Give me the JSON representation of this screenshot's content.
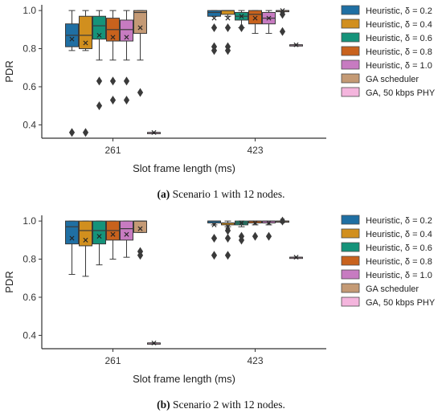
{
  "legend": [
    {
      "label": "Heuristic, δ = 0.2",
      "color": "#1f6fa3"
    },
    {
      "label": "Heuristic, δ = 0.4",
      "color": "#d18f1e"
    },
    {
      "label": "Heuristic, δ = 0.6",
      "color": "#15937a"
    },
    {
      "label": "Heuristic, δ = 0.8",
      "color": "#c8621d"
    },
    {
      "label": "Heuristic, δ = 1.0",
      "color": "#c77bc1"
    },
    {
      "label": "GA scheduler",
      "color": "#c49a75"
    },
    {
      "label": "GA, 50 kbps PHY",
      "color": "#f4b5dd"
    }
  ],
  "chart_data": [
    {
      "type": "box",
      "caption_label": "(a)",
      "caption_text": " Scenario 1 with 12 nodes.",
      "xlabel": "Slot frame length (ms)",
      "ylabel": "PDR",
      "categories": [
        "261",
        "423"
      ],
      "yticks": [
        0.4,
        0.6,
        0.8,
        1.0
      ],
      "ylim": [
        0.33,
        1.03
      ],
      "grid": false,
      "legend_position": "right",
      "series": [
        {
          "name": "Heuristic, δ = 0.2",
          "boxes": [
            {
              "whislo": 0.79,
              "q1": 0.81,
              "med": 0.87,
              "q3": 0.93,
              "whishi": 1.0,
              "mean": 0.85,
              "fliers": [
                0.36
              ]
            },
            {
              "whislo": 0.97,
              "q1": 0.97,
              "med": 0.99,
              "q3": 1.0,
              "whishi": 1.0,
              "mean": 0.96,
              "fliers": [
                0.91,
                0.81,
                0.79
              ]
            }
          ]
        },
        {
          "name": "Heuristic, δ = 0.4",
          "boxes": [
            {
              "whislo": 0.79,
              "q1": 0.8,
              "med": 0.87,
              "q3": 0.97,
              "whishi": 1.0,
              "mean": 0.83,
              "fliers": [
                0.36
              ]
            },
            {
              "whislo": 0.97,
              "q1": 0.98,
              "med": 1.0,
              "q3": 1.0,
              "whishi": 1.0,
              "mean": 0.96,
              "fliers": [
                0.91,
                0.81,
                0.79
              ]
            }
          ]
        },
        {
          "name": "Heuristic, δ = 0.6",
          "boxes": [
            {
              "whislo": 0.74,
              "q1": 0.85,
              "med": 0.92,
              "q3": 0.97,
              "whishi": 1.0,
              "mean": 0.87,
              "fliers": [
                0.63,
                0.5
              ]
            },
            {
              "whislo": 0.91,
              "q1": 0.95,
              "med": 0.97,
              "q3": 0.99,
              "whishi": 1.0,
              "mean": 0.97,
              "fliers": [
                0.91
              ]
            }
          ]
        },
        {
          "name": "Heuristic, δ = 0.8",
          "boxes": [
            {
              "whislo": 0.74,
              "q1": 0.84,
              "med": 0.9,
              "q3": 0.96,
              "whishi": 1.0,
              "mean": 0.86,
              "fliers": [
                0.63,
                0.53
              ]
            },
            {
              "whislo": 0.88,
              "q1": 0.93,
              "med": 0.98,
              "q3": 1.0,
              "whishi": 1.0,
              "mean": 0.96,
              "fliers": []
            }
          ]
        },
        {
          "name": "Heuristic, δ = 1.0",
          "boxes": [
            {
              "whislo": 0.74,
              "q1": 0.84,
              "med": 0.9,
              "q3": 0.95,
              "whishi": 1.0,
              "mean": 0.86,
              "fliers": [
                0.63,
                0.53
              ]
            },
            {
              "whislo": 0.88,
              "q1": 0.93,
              "med": 0.96,
              "q3": 0.99,
              "whishi": 1.0,
              "mean": 0.96,
              "fliers": []
            }
          ]
        },
        {
          "name": "GA scheduler",
          "boxes": [
            {
              "whislo": 0.74,
              "q1": 0.88,
              "med": 0.99,
              "q3": 1.0,
              "whishi": 1.0,
              "mean": 0.91,
              "fliers": [
                0.57
              ]
            },
            {
              "whislo": 1.0,
              "q1": 1.0,
              "med": 1.0,
              "q3": 1.0,
              "whishi": 1.0,
              "mean": 1.0,
              "fliers": [
                0.98,
                0.89
              ]
            }
          ]
        },
        {
          "name": "GA, 50 kbps PHY",
          "boxes": [
            {
              "whislo": 0.36,
              "q1": 0.36,
              "med": 0.36,
              "q3": 0.36,
              "whishi": 0.36,
              "mean": 0.36,
              "fliers": []
            },
            {
              "whislo": 0.82,
              "q1": 0.82,
              "med": 0.82,
              "q3": 0.82,
              "whishi": 0.82,
              "mean": 0.82,
              "fliers": []
            }
          ]
        }
      ]
    },
    {
      "type": "box",
      "caption_label": "(b)",
      "caption_text": " Scenario 2 with 12 nodes.",
      "xlabel": "Slot frame length (ms)",
      "ylabel": "PDR",
      "categories": [
        "261",
        "423"
      ],
      "yticks": [
        0.4,
        0.6,
        0.8,
        1.0
      ],
      "ylim": [
        0.33,
        1.03
      ],
      "grid": false,
      "legend_position": "right",
      "series": [
        {
          "name": "Heuristic, δ = 0.2",
          "boxes": [
            {
              "whislo": 0.72,
              "q1": 0.88,
              "med": 0.97,
              "q3": 1.0,
              "whishi": 1.0,
              "mean": 0.91,
              "fliers": []
            },
            {
              "whislo": 0.98,
              "q1": 0.99,
              "med": 1.0,
              "q3": 1.0,
              "whishi": 1.0,
              "mean": 0.98,
              "fliers": [
                0.91,
                0.82
              ]
            }
          ]
        },
        {
          "name": "Heuristic, δ = 0.4",
          "boxes": [
            {
              "whislo": 0.71,
              "q1": 0.87,
              "med": 0.95,
              "q3": 1.0,
              "whishi": 1.0,
              "mean": 0.9,
              "fliers": []
            },
            {
              "whislo": 0.97,
              "q1": 0.98,
              "med": 0.99,
              "q3": 0.99,
              "whishi": 1.0,
              "mean": 0.97,
              "fliers": [
                0.95,
                0.91,
                0.82
              ]
            }
          ]
        },
        {
          "name": "Heuristic, δ = 0.6",
          "boxes": [
            {
              "whislo": 0.77,
              "q1": 0.88,
              "med": 0.95,
              "q3": 1.0,
              "whishi": 1.0,
              "mean": 0.92,
              "fliers": []
            },
            {
              "whislo": 0.97,
              "q1": 0.98,
              "med": 0.99,
              "q3": 1.0,
              "whishi": 1.0,
              "mean": 0.99,
              "fliers": [
                0.92,
                0.9
              ]
            }
          ]
        },
        {
          "name": "Heuristic, δ = 0.8",
          "boxes": [
            {
              "whislo": 0.8,
              "q1": 0.9,
              "med": 0.95,
              "q3": 1.0,
              "whishi": 1.0,
              "mean": 0.93,
              "fliers": []
            },
            {
              "whislo": 0.98,
              "q1": 0.99,
              "med": 1.0,
              "q3": 1.0,
              "whishi": 1.0,
              "mean": 0.99,
              "fliers": [
                0.92
              ]
            }
          ]
        },
        {
          "name": "Heuristic, δ = 1.0",
          "boxes": [
            {
              "whislo": 0.81,
              "q1": 0.9,
              "med": 0.96,
              "q3": 1.0,
              "whishi": 1.0,
              "mean": 0.93,
              "fliers": []
            },
            {
              "whislo": 0.98,
              "q1": 0.99,
              "med": 1.0,
              "q3": 1.0,
              "whishi": 1.0,
              "mean": 0.99,
              "fliers": [
                0.92
              ]
            }
          ]
        },
        {
          "name": "GA scheduler",
          "boxes": [
            {
              "whislo": 0.94,
              "q1": 0.94,
              "med": 1.0,
              "q3": 1.0,
              "whishi": 1.0,
              "mean": 0.96,
              "fliers": [
                0.84,
                0.82
              ]
            },
            {
              "whislo": 1.0,
              "q1": 1.0,
              "med": 1.0,
              "q3": 1.0,
              "whishi": 1.0,
              "mean": 1.0,
              "fliers": [
                1.0
              ]
            }
          ]
        },
        {
          "name": "GA, 50 kbps PHY",
          "boxes": [
            {
              "whislo": 0.36,
              "q1": 0.36,
              "med": 0.36,
              "q3": 0.36,
              "whishi": 0.36,
              "mean": 0.36,
              "fliers": []
            },
            {
              "whislo": 0.81,
              "q1": 0.81,
              "med": 0.81,
              "q3": 0.81,
              "whishi": 0.81,
              "mean": 0.81,
              "fliers": []
            }
          ]
        }
      ]
    }
  ]
}
